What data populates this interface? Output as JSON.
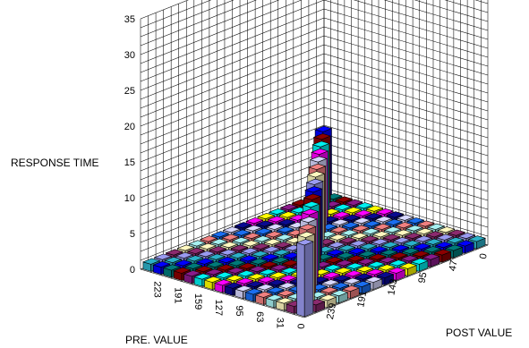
{
  "chart_data": {
    "type": "bar3d",
    "title": "",
    "zlabel": "RESPONSE TIME",
    "xlabel": "PRE. VALUE",
    "ylabel": "POST VALUE",
    "zlim": [
      0,
      35
    ],
    "z_ticks": [
      "0",
      "5",
      "10",
      "15",
      "20",
      "25",
      "30",
      "35"
    ],
    "x_ticks": [
      "0",
      "31",
      "63",
      "95",
      "127",
      "159",
      "191",
      "223"
    ],
    "y_ticks": [
      "0",
      "47",
      "95",
      "143",
      "191",
      "239"
    ],
    "grid": true,
    "diagonal_peak": 10,
    "off_diagonal_value": 1,
    "series_colors": [
      "#9a9af0",
      "#8b2a6e",
      "#fff8c0",
      "#a7f0f0",
      "#f08080",
      "#1a6ef0",
      "#d8d8ff",
      "#0a0a90",
      "#ff00ff",
      "#ffff00",
      "#00f0f0",
      "#8a1a8a",
      "#8b0000",
      "#007a7a",
      "#0000ff",
      "#2bb0c8"
    ]
  }
}
